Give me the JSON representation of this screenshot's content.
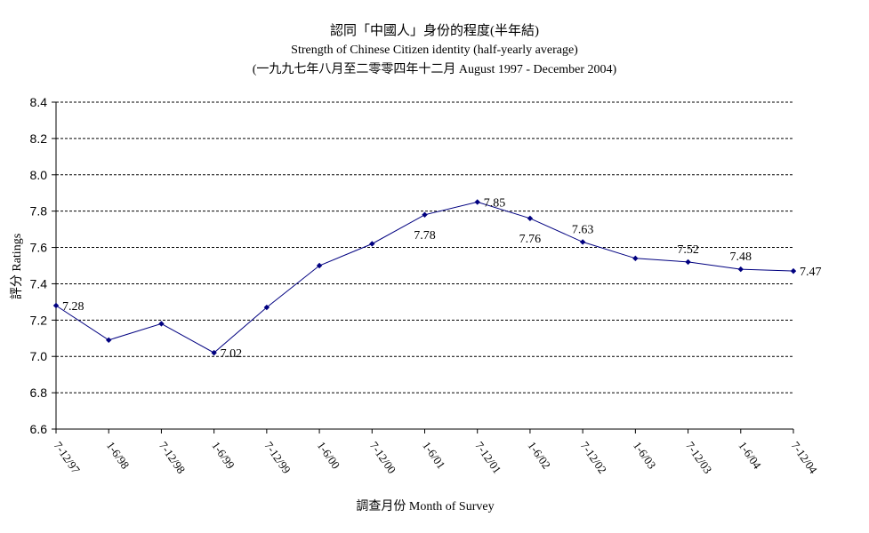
{
  "chart_data": {
    "type": "line",
    "title": "認同「中國人」身份的程度(半年結)",
    "subtitle": "Strength of Chinese Citizen identity (half-yearly average)",
    "subtitle2": "(一九九七年八月至二零零四年十二月 August 1997 - December 2004)",
    "xlabel": "調查月份 Month of Survey",
    "ylabel": "評分 Ratings",
    "ylim": [
      6.6,
      8.4
    ],
    "yticks": [
      "6.6",
      "6.8",
      "7.0",
      "7.2",
      "7.4",
      "7.6",
      "7.8",
      "8.0",
      "8.2",
      "8.4"
    ],
    "categories": [
      "7-12/97",
      "1-6/98",
      "7-12/98",
      "1-6/99",
      "7-12/99",
      "1-6/00",
      "7-12/00",
      "1-6/01",
      "7-12/01",
      "1-6/02",
      "7-12/02",
      "1-6/03",
      "7-12/03",
      "1-6/04",
      "7-12/04"
    ],
    "series": [
      {
        "values": [
          7.28,
          7.09,
          7.18,
          7.02,
          7.27,
          7.5,
          7.62,
          7.78,
          7.85,
          7.76,
          7.63,
          7.54,
          7.52,
          7.48,
          7.47
        ]
      }
    ],
    "data_labels": [
      {
        "index": 0,
        "text": "7.28",
        "position": "right"
      },
      {
        "index": 3,
        "text": "7.02",
        "position": "right"
      },
      {
        "index": 7,
        "text": "7.78",
        "position": "below"
      },
      {
        "index": 8,
        "text": "7.85",
        "position": "right"
      },
      {
        "index": 9,
        "text": "7.76",
        "position": "below"
      },
      {
        "index": 10,
        "text": "7.63",
        "position": "above"
      },
      {
        "index": 12,
        "text": "7.52",
        "position": "above"
      },
      {
        "index": 13,
        "text": "7.48",
        "position": "above"
      },
      {
        "index": 14,
        "text": "7.47",
        "position": "right"
      }
    ],
    "grid": "horizontal-dashed",
    "legend": "none",
    "line_color": "#000080",
    "marker_color": "#000080"
  }
}
